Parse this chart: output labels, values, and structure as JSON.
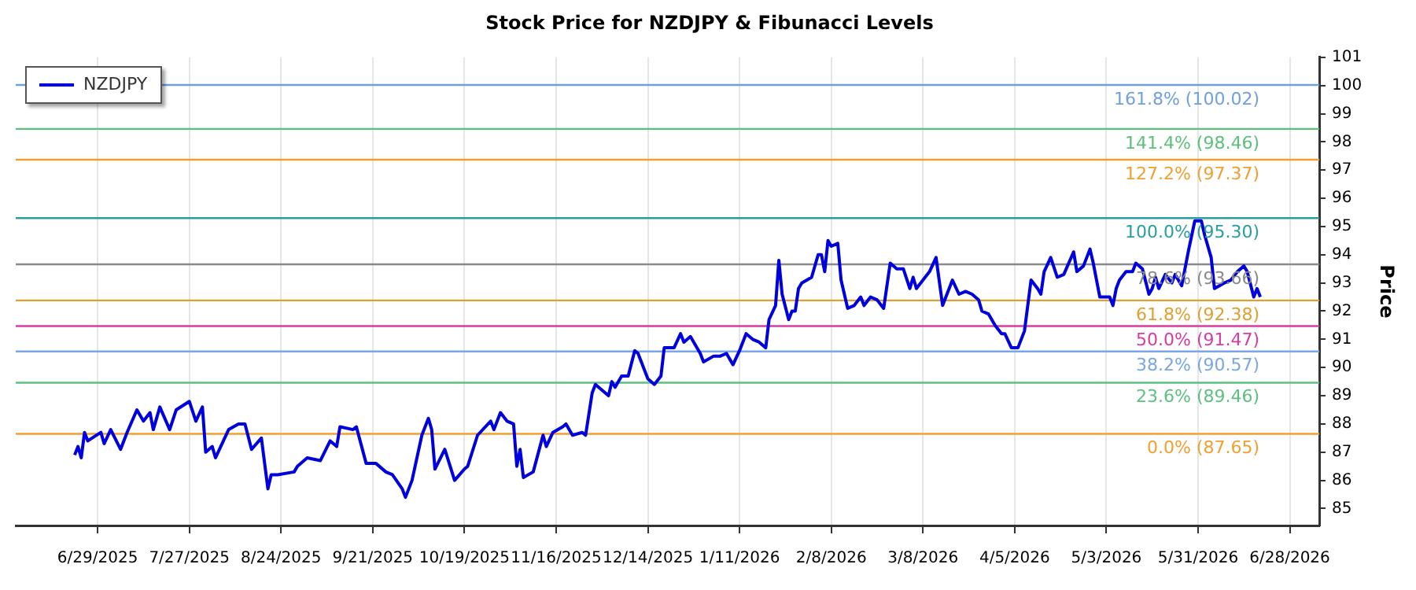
{
  "chart_data": {
    "type": "line",
    "title": "Stock Price for NZDJPY & Fibunacci Levels",
    "ylabel": "Price",
    "series": [
      {
        "name": "NZDJPY",
        "color": "#0000dd",
        "x": [
          "2025-06-22",
          "2025-06-23",
          "2025-06-24",
          "2025-06-25",
          "2025-06-26",
          "2025-06-30",
          "2025-07-01",
          "2025-07-03",
          "2025-07-06",
          "2025-07-08",
          "2025-07-11",
          "2025-07-13",
          "2025-07-15",
          "2025-07-16",
          "2025-07-18",
          "2025-07-21",
          "2025-07-23",
          "2025-07-27",
          "2025-07-29",
          "2025-07-31",
          "2025-08-01",
          "2025-08-03",
          "2025-08-04",
          "2025-08-08",
          "2025-08-11",
          "2025-08-13",
          "2025-08-15",
          "2025-08-18",
          "2025-08-20",
          "2025-08-21",
          "2025-08-23",
          "2025-08-28",
          "2025-08-29",
          "2025-09-01",
          "2025-09-05",
          "2025-09-08",
          "2025-09-10",
          "2025-09-11",
          "2025-09-15",
          "2025-09-16",
          "2025-09-19",
          "2025-09-22",
          "2025-09-25",
          "2025-09-27",
          "2025-09-30",
          "2025-10-01",
          "2025-10-03",
          "2025-10-06",
          "2025-10-08",
          "2025-10-09",
          "2025-10-10",
          "2025-10-13",
          "2025-10-16",
          "2025-10-19",
          "2025-10-20",
          "2025-10-23",
          "2025-10-27",
          "2025-10-28",
          "2025-10-30",
          "2025-11-01",
          "2025-11-03",
          "2025-11-04",
          "2025-11-05",
          "2025-11-06",
          "2025-11-09",
          "2025-11-12",
          "2025-11-13",
          "2025-11-15",
          "2025-11-18",
          "2025-11-19",
          "2025-11-21",
          "2025-11-24",
          "2025-11-25",
          "2025-11-27",
          "2025-11-28",
          "2025-12-02",
          "2025-12-03",
          "2025-12-04",
          "2025-12-06",
          "2025-12-08",
          "2025-12-10",
          "2025-12-11",
          "2025-12-14",
          "2025-12-16",
          "2025-12-18",
          "2025-12-19",
          "2025-12-22",
          "2025-12-24",
          "2025-12-25",
          "2025-12-27",
          "2025-12-30",
          "2025-12-31",
          "2026-01-03",
          "2026-01-05",
          "2026-01-07",
          "2026-01-09",
          "2026-01-11",
          "2026-01-13",
          "2026-01-15",
          "2026-01-17",
          "2026-01-19",
          "2026-01-20",
          "2026-01-22",
          "2026-01-23",
          "2026-01-24",
          "2026-01-26",
          "2026-01-27",
          "2026-01-28",
          "2026-01-29",
          "2026-01-30",
          "2026-02-02",
          "2026-02-04",
          "2026-02-05",
          "2026-02-06",
          "2026-02-07",
          "2026-02-08",
          "2026-02-10",
          "2026-02-11",
          "2026-02-13",
          "2026-02-15",
          "2026-02-17",
          "2026-02-18",
          "2026-02-20",
          "2026-02-22",
          "2026-02-24",
          "2026-02-26",
          "2026-02-28",
          "2026-03-02",
          "2026-03-04",
          "2026-03-05",
          "2026-03-06",
          "2026-03-08",
          "2026-03-10",
          "2026-03-12",
          "2026-03-14",
          "2026-03-17",
          "2026-03-19",
          "2026-03-21",
          "2026-03-23",
          "2026-03-25",
          "2026-03-26",
          "2026-03-28",
          "2026-03-30",
          "2026-04-01",
          "2026-04-02",
          "2026-04-04",
          "2026-04-06",
          "2026-04-08",
          "2026-04-10",
          "2026-04-12",
          "2026-04-13",
          "2026-04-14",
          "2026-04-16",
          "2026-04-18",
          "2026-04-20",
          "2026-04-23",
          "2026-04-24",
          "2026-04-26",
          "2026-04-28",
          "2026-04-29",
          "2026-05-01",
          "2026-05-04",
          "2026-05-05",
          "2026-05-06",
          "2026-05-07",
          "2026-05-09",
          "2026-05-11",
          "2026-05-12",
          "2026-05-14",
          "2026-05-16",
          "2026-05-17",
          "2026-05-18",
          "2026-05-19",
          "2026-05-21",
          "2026-05-23",
          "2026-05-24",
          "2026-05-26",
          "2026-05-28",
          "2026-05-30",
          "2026-06-01",
          "2026-06-02",
          "2026-06-04",
          "2026-06-05",
          "2026-06-08",
          "2026-06-10",
          "2026-06-12",
          "2026-06-14",
          "2026-06-15",
          "2026-06-17",
          "2026-06-18",
          "2026-06-19"
        ],
        "values": [
          86.9,
          87.2,
          86.8,
          87.7,
          87.4,
          87.7,
          87.3,
          87.8,
          87.1,
          87.7,
          88.5,
          88.1,
          88.4,
          87.8,
          88.6,
          87.8,
          88.5,
          88.8,
          88.1,
          88.6,
          87.0,
          87.2,
          86.8,
          87.8,
          88.0,
          88.0,
          87.1,
          87.5,
          85.7,
          86.2,
          86.2,
          86.3,
          86.5,
          86.8,
          86.7,
          87.4,
          87.2,
          87.9,
          87.8,
          87.9,
          86.6,
          86.6,
          86.3,
          86.2,
          85.7,
          85.4,
          86.0,
          87.6,
          88.2,
          87.8,
          86.4,
          87.1,
          86.0,
          86.4,
          86.5,
          87.6,
          88.1,
          87.8,
          88.4,
          88.1,
          88.0,
          86.5,
          87.1,
          86.1,
          86.3,
          87.6,
          87.2,
          87.7,
          87.9,
          88.0,
          87.6,
          87.7,
          87.6,
          89.1,
          89.4,
          89.0,
          89.5,
          89.3,
          89.7,
          89.7,
          90.6,
          90.5,
          89.6,
          89.4,
          89.7,
          90.7,
          90.7,
          91.2,
          90.9,
          91.1,
          90.5,
          90.2,
          90.4,
          90.4,
          90.5,
          90.1,
          90.6,
          91.2,
          91.0,
          90.9,
          90.7,
          91.7,
          92.2,
          93.8,
          92.6,
          91.7,
          92.0,
          92.0,
          92.8,
          93.0,
          93.2,
          94.0,
          94.0,
          93.4,
          94.5,
          94.3,
          94.4,
          93.1,
          92.1,
          92.2,
          92.5,
          92.2,
          92.5,
          92.4,
          92.1,
          93.7,
          93.5,
          93.5,
          92.8,
          93.2,
          92.8,
          93.1,
          93.4,
          93.9,
          92.2,
          93.1,
          92.6,
          92.7,
          92.6,
          92.4,
          92.0,
          91.9,
          91.5,
          91.2,
          91.2,
          90.7,
          90.7,
          91.3,
          93.1,
          92.8,
          92.6,
          93.4,
          93.9,
          93.2,
          93.3,
          94.1,
          93.4,
          93.6,
          94.2,
          93.7,
          92.5,
          92.5,
          92.2,
          92.8,
          93.1,
          93.4,
          93.4,
          93.7,
          93.5,
          92.6,
          92.8,
          93.2,
          92.8,
          93.3,
          93.0,
          93.3,
          92.9,
          94.1,
          95.2,
          95.2,
          94.7,
          93.9,
          92.8,
          93.0,
          93.1,
          93.4,
          93.6,
          93.4,
          92.5,
          92.8,
          92.5
        ]
      }
    ],
    "xlim": [
      "2025-06-04",
      "2026-07-07"
    ],
    "xticks": [
      {
        "value": "2025-06-29",
        "label": "6/29/2025"
      },
      {
        "value": "2025-07-27",
        "label": "7/27/2025"
      },
      {
        "value": "2025-08-24",
        "label": "8/24/2025"
      },
      {
        "value": "2025-09-21",
        "label": "9/21/2025"
      },
      {
        "value": "2025-10-19",
        "label": "10/19/2025"
      },
      {
        "value": "2025-11-16",
        "label": "11/16/2025"
      },
      {
        "value": "2025-12-14",
        "label": "12/14/2025"
      },
      {
        "value": "2026-01-11",
        "label": "1/11/2026"
      },
      {
        "value": "2026-02-08",
        "label": "2/8/2026"
      },
      {
        "value": "2026-03-08",
        "label": "3/8/2026"
      },
      {
        "value": "2026-04-05",
        "label": "4/5/2026"
      },
      {
        "value": "2026-05-03",
        "label": "5/3/2026"
      },
      {
        "value": "2026-05-31",
        "label": "5/31/2026"
      },
      {
        "value": "2026-06-28",
        "label": "6/28/2026"
      }
    ],
    "ylim": [
      84.4,
      101
    ],
    "yticks": [
      85,
      86,
      87,
      88,
      89,
      90,
      91,
      92,
      93,
      94,
      95,
      96,
      97,
      98,
      99,
      100,
      101
    ],
    "ref_lines": [
      {
        "axis": "y",
        "value": 100.02,
        "label": "161.8% (100.02)",
        "color": "#6f9fdc"
      },
      {
        "axis": "y",
        "value": 98.46,
        "label": "141.4% (98.46)",
        "color": "#5cbf7a"
      },
      {
        "axis": "y",
        "value": 97.37,
        "label": "127.2% (97.37)",
        "color": "#f0a030"
      },
      {
        "axis": "y",
        "value": 95.3,
        "label": "100.0% (95.30)",
        "color": "#2a9d9d"
      },
      {
        "axis": "y",
        "value": 93.66,
        "label": "78.6% (93.66)",
        "color": "#8a8a8a"
      },
      {
        "axis": "y",
        "value": 92.38,
        "label": "61.8% (92.38)",
        "color": "#e0a030"
      },
      {
        "axis": "y",
        "value": 91.47,
        "label": "50.0% (91.47)",
        "color": "#d63ca0"
      },
      {
        "axis": "y",
        "value": 90.57,
        "label": "38.2% (90.57)",
        "color": "#7aa6e8"
      },
      {
        "axis": "y",
        "value": 89.46,
        "label": "23.6% (89.46)",
        "color": "#5cc080"
      },
      {
        "axis": "y",
        "value": 87.65,
        "label": "0.0% (87.65)",
        "color": "#f0a030"
      }
    ],
    "grid": "x",
    "legend": "top left",
    "marker": "none",
    "line_style": "solid"
  }
}
